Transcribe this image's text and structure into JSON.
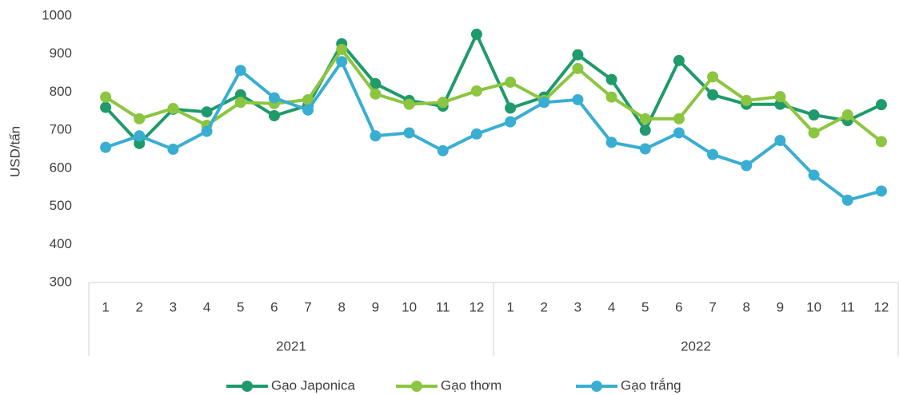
{
  "chart_data": {
    "type": "line",
    "y_label": "USD/tấn",
    "categories": [
      "1",
      "2",
      "3",
      "4",
      "5",
      "6",
      "7",
      "8",
      "9",
      "10",
      "11",
      "12",
      "1",
      "2",
      "3",
      "4",
      "5",
      "6",
      "7",
      "8",
      "9",
      "10",
      "11",
      "12"
    ],
    "x_groups": [
      "2021",
      "2022"
    ],
    "series": [
      {
        "name": "Gạo Japonica",
        "color": "#1f9a6b",
        "values": [
          760,
          665,
          755,
          748,
          793,
          738,
          765,
          927,
          822,
          778,
          763,
          952,
          758,
          787,
          898,
          833,
          700,
          883,
          793,
          768,
          768,
          740,
          725,
          767
        ]
      },
      {
        "name": "Gạo thơm",
        "color": "#8cc540",
        "values": [
          787,
          730,
          757,
          713,
          773,
          770,
          780,
          912,
          795,
          768,
          773,
          803,
          826,
          778,
          862,
          787,
          730,
          730,
          840,
          778,
          788,
          693,
          740,
          670
        ]
      },
      {
        "name": "Gạo trắng",
        "color": "#3aaed2",
        "values": [
          655,
          685,
          650,
          697,
          857,
          785,
          753,
          880,
          685,
          693,
          646,
          690,
          722,
          773,
          780,
          668,
          651,
          693,
          636,
          607,
          673,
          582,
          516,
          540
        ]
      }
    ],
    "ylim": [
      300,
      1000
    ],
    "yticks": [
      300,
      400,
      500,
      600,
      700,
      800,
      900,
      1000
    ],
    "grid": false,
    "legend": "bottom"
  }
}
